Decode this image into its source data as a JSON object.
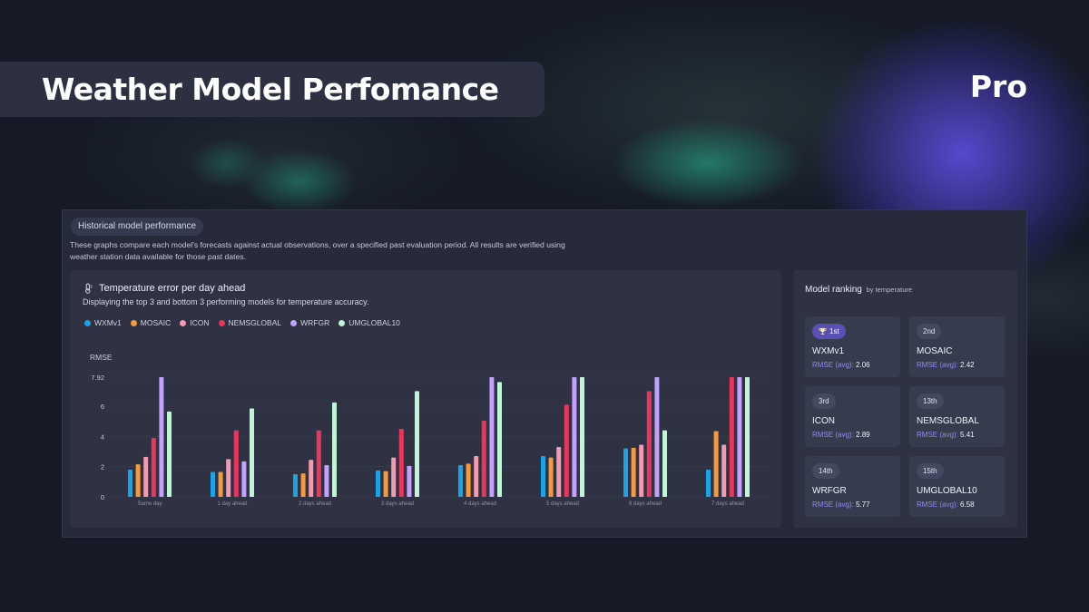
{
  "header": {
    "title": "Weather Model Perfomance",
    "tier": "Pro"
  },
  "section": {
    "pill": "Historical model performance",
    "description": "These graphs compare each model's forecasts against actual observations, over a specified past evaluation period. All results are verified using weather station data available for those past dates."
  },
  "chart": {
    "title": "Temperature error per day ahead",
    "subtitle": "Displaying the top 3 and bottom 3 performing models for temperature accuracy.",
    "icon": "thermometer-icon"
  },
  "chart_data": {
    "type": "bar",
    "ylabel": "RMSE",
    "ylim": [
      0,
      7.92
    ],
    "yticks": [
      "0",
      "2",
      "4",
      "6",
      "7.92"
    ],
    "grid": true,
    "legend": "top-left",
    "categories": [
      "Same day",
      "1 day ahead",
      "2 days ahead",
      "3 days ahead",
      "4 days ahead",
      "5 days ahead",
      "6 days ahead",
      "7 days ahead"
    ],
    "series": [
      {
        "name": "WXMv1",
        "color": "#1aa3e8",
        "values": [
          1.8,
          1.65,
          1.5,
          1.75,
          2.1,
          2.7,
          3.2,
          1.8
        ]
      },
      {
        "name": "MOSAIC",
        "color": "#f59a3c",
        "values": [
          2.15,
          1.65,
          1.55,
          1.7,
          2.2,
          2.6,
          3.25,
          4.35
        ]
      },
      {
        "name": "ICON",
        "color": "#f29ab0",
        "values": [
          2.65,
          2.5,
          2.45,
          2.6,
          2.7,
          3.3,
          3.45,
          3.45
        ]
      },
      {
        "name": "NEMSGLOBAL",
        "color": "#e8365c",
        "values": [
          3.9,
          4.4,
          4.4,
          4.5,
          5.05,
          6.1,
          7.0,
          7.92
        ]
      },
      {
        "name": "WRFGR",
        "color": "#c4a0ff",
        "values": [
          7.92,
          2.35,
          2.1,
          2.05,
          7.92,
          7.92,
          7.92,
          7.92
        ]
      },
      {
        "name": "UMGLOBAL10",
        "color": "#c2f4d8",
        "values": [
          5.65,
          5.85,
          6.25,
          7.0,
          7.6,
          7.92,
          4.4,
          7.92
        ]
      }
    ]
  },
  "ranking": {
    "title": "Model ranking",
    "subtitle": "by temperature",
    "rmse_label": "RMSE (avg):",
    "trophy_icon": "trophy-icon",
    "items": [
      {
        "rank": "1st",
        "name": "WXMv1",
        "rmse": "2.06",
        "first": true
      },
      {
        "rank": "2nd",
        "name": "MOSAIC",
        "rmse": "2.42"
      },
      {
        "rank": "3rd",
        "name": "ICON",
        "rmse": "2.89"
      },
      {
        "rank": "13th",
        "name": "NEMSGLOBAL",
        "rmse": "5.41"
      },
      {
        "rank": "14th",
        "name": "WRFGR",
        "rmse": "5.77"
      },
      {
        "rank": "15th",
        "name": "UMGLOBAL10",
        "rmse": "6.58"
      }
    ]
  }
}
